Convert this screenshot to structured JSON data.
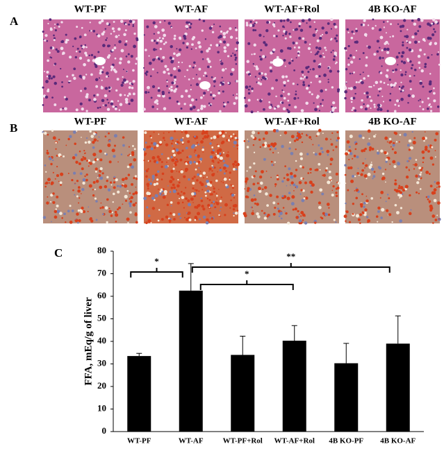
{
  "panels": {
    "a": {
      "label": "A",
      "titles": [
        "WT-PF",
        "WT-AF",
        "WT-AF+Rol",
        "4B KO-AF"
      ]
    },
    "b": {
      "label": "B",
      "titles": [
        "WT-PF",
        "WT-AF",
        "WT-AF+Rol",
        "4B KO-AF"
      ]
    }
  },
  "chart_data": {
    "type": "bar",
    "panel_label": "C",
    "y_label": "FFA, mEq/g of liver",
    "categories": [
      "WT-PF",
      "WT-AF",
      "WT-PF+Rol",
      "WT-AF+Rol",
      "4B KO-PF",
      "4B KO-AF"
    ],
    "values": [
      33.5,
      62.5,
      34,
      40.3,
      30.3,
      39
    ],
    "errors": [
      1.2,
      12,
      8.3,
      6.7,
      8.8,
      12.3
    ],
    "color": "#000000",
    "ylim": [
      0,
      80
    ],
    "yticks": [
      0,
      10,
      20,
      30,
      40,
      50,
      60,
      70,
      80
    ],
    "grid": false,
    "annotations": [
      {
        "text": "*"
      },
      {
        "text": "**"
      },
      {
        "text": "*"
      }
    ]
  }
}
